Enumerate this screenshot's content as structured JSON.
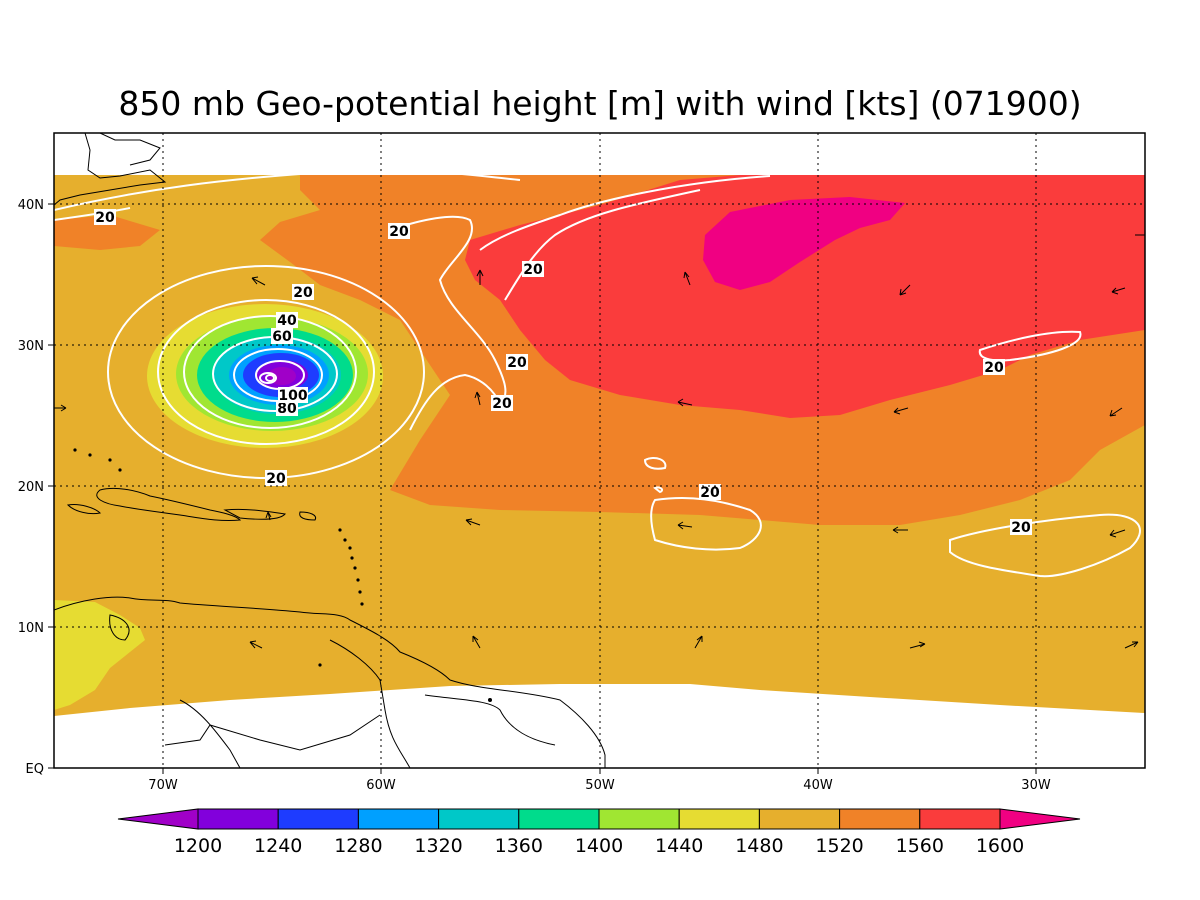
{
  "title": "850 mb Geo-potential height [m] with wind [kts] (071900)",
  "axes": {
    "lat_labels": [
      "EQ",
      "10N",
      "20N",
      "30N",
      "40N"
    ],
    "lon_labels": [
      "70W",
      "60W",
      "50W",
      "40W",
      "30W"
    ]
  },
  "colorbar": {
    "ticks": [
      "1200",
      "1240",
      "1280",
      "1320",
      "1360",
      "1400",
      "1440",
      "1480",
      "1520",
      "1560",
      "1600"
    ],
    "colors": [
      "#a000c8",
      "#8200dc",
      "#1e3cff",
      "#00a0ff",
      "#00c8c8",
      "#00dc8c",
      "#a0e632",
      "#e6dc32",
      "#e6af2d",
      "#f08228",
      "#fa3c3c",
      "#f00082"
    ]
  },
  "wind_contour_labels": [
    "20",
    "20",
    "20",
    "20",
    "20",
    "20",
    "20",
    "20",
    "20",
    "20",
    "40",
    "60",
    "80",
    "100"
  ],
  "chart_data": {
    "type": "heatmap",
    "title": "850 mb Geo-potential height [m] with wind [kts] (071900)",
    "field": "850 mb geopotential height",
    "units": "m",
    "contour_field": "wind speed",
    "contour_units": "kts",
    "contour_levels": [
      20,
      40,
      60,
      80,
      100
    ],
    "color_levels": [
      1200,
      1240,
      1280,
      1320,
      1360,
      1400,
      1440,
      1480,
      1520,
      1560,
      1600
    ],
    "xlim": [
      "75W",
      "25W"
    ],
    "ylim": [
      "EQ",
      "45N"
    ],
    "features": [
      {
        "name": "cyclone low center",
        "lat": 28,
        "lon": -65,
        "min_height_m": 1200,
        "max_wind_kts": 100
      },
      {
        "name": "high center",
        "lat": 37,
        "lon": -40,
        "max_height_m": 1600
      }
    ]
  }
}
